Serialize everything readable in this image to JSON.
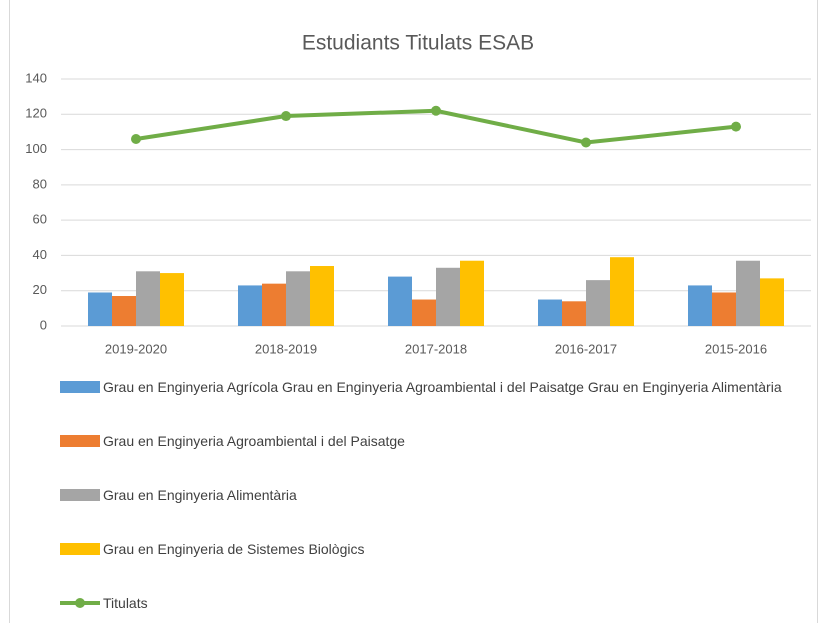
{
  "chart_data": {
    "type": "bar",
    "title": "Estudiants Titulats ESAB",
    "categories": [
      "2019-2020",
      "2018-2019",
      "2017-2018",
      "2016-2017",
      "2015-2016"
    ],
    "series": [
      {
        "name": "Grau en Enginyeria Agrícola Grau en Enginyeria Agroambiental i del Paisatge Grau en Enginyeria Alimentària",
        "color": "#5b9bd5",
        "values": [
          19,
          23,
          28,
          15,
          23
        ]
      },
      {
        "name": "Grau en Enginyeria Agroambiental i del Paisatge",
        "color": "#ed7d31",
        "values": [
          17,
          24,
          15,
          14,
          19
        ]
      },
      {
        "name": "Grau en Enginyeria Alimentària",
        "color": "#a5a5a5",
        "values": [
          31,
          31,
          33,
          26,
          37
        ]
      },
      {
        "name": "Grau en Enginyeria de Sistemes Biològics",
        "color": "#ffc000",
        "values": [
          30,
          34,
          37,
          39,
          27
        ]
      },
      {
        "name": "Titulats",
        "color": "#70ad47",
        "type": "line",
        "values": [
          106,
          119,
          122,
          104,
          113
        ]
      }
    ],
    "ylim": [
      0,
      140
    ],
    "yticks": [
      0,
      20,
      40,
      60,
      80,
      100,
      120,
      140
    ],
    "grid": true,
    "legend": "bottom"
  }
}
